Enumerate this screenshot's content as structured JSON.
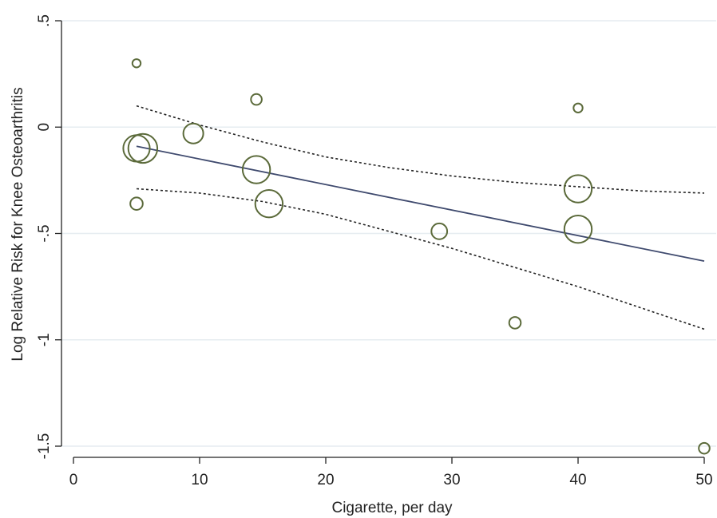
{
  "chart_data": {
    "type": "scatter",
    "title": "",
    "xlabel": "Cigarette, per day",
    "ylabel": "Log Relative Risk for Knee Osteoarthritis",
    "xlim": [
      0,
      50
    ],
    "ylim": [
      -1.5,
      0.5
    ],
    "x_ticks": [
      0,
      10,
      20,
      30,
      40,
      50
    ],
    "x_tick_labels": [
      "0",
      "10",
      "20",
      "30",
      "40",
      "50"
    ],
    "y_ticks": [
      -1.5,
      -1,
      -0.5,
      0,
      0.5
    ],
    "y_tick_labels": [
      "-1.5",
      "-1",
      "-.5",
      "0",
      ".5"
    ],
    "grid": "horizontal",
    "legend": "none",
    "points": [
      {
        "x": 5,
        "y": 0.3,
        "size": 1
      },
      {
        "x": 5,
        "y": -0.36,
        "size": 1.5
      },
      {
        "x": 5,
        "y": -0.1,
        "size": 3.2
      },
      {
        "x": 5.5,
        "y": -0.1,
        "size": 3.5
      },
      {
        "x": 9.5,
        "y": -0.03,
        "size": 2.4
      },
      {
        "x": 14.5,
        "y": 0.13,
        "size": 1.3
      },
      {
        "x": 14.5,
        "y": -0.2,
        "size": 3.3
      },
      {
        "x": 15.5,
        "y": -0.36,
        "size": 3.3
      },
      {
        "x": 29,
        "y": -0.49,
        "size": 1.9
      },
      {
        "x": 35,
        "y": -0.92,
        "size": 1.4
      },
      {
        "x": 40,
        "y": 0.09,
        "size": 1.1
      },
      {
        "x": 40,
        "y": -0.29,
        "size": 3.3
      },
      {
        "x": 40,
        "y": -0.48,
        "size": 3.3
      },
      {
        "x": 50,
        "y": -1.51,
        "size": 1.3
      }
    ],
    "fit_line": {
      "x": [
        5,
        50
      ],
      "y": [
        -0.09,
        -0.63
      ]
    },
    "ci_upper": {
      "x": [
        5,
        10,
        15,
        20,
        25,
        30,
        35,
        40,
        45,
        50
      ],
      "y": [
        0.1,
        0.01,
        -0.07,
        -0.14,
        -0.19,
        -0.23,
        -0.26,
        -0.28,
        -0.3,
        -0.31
      ]
    },
    "ci_lower": {
      "x": [
        5,
        10,
        15,
        20,
        25,
        30,
        35,
        40,
        45,
        50
      ],
      "y": [
        -0.29,
        -0.31,
        -0.35,
        -0.41,
        -0.49,
        -0.57,
        -0.66,
        -0.75,
        -0.85,
        -0.95
      ]
    },
    "colors": {
      "marker": "#5b6a3a",
      "fit": "#3f4a6e",
      "ci": "#222222",
      "grid": "#e6ecf0",
      "axis": "#222222"
    }
  }
}
